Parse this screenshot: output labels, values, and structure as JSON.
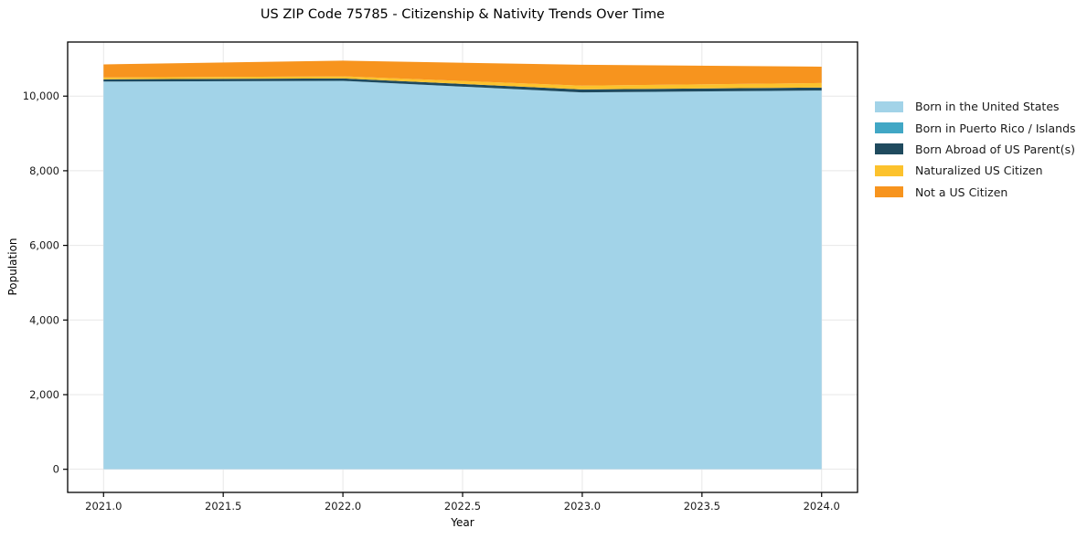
{
  "chart_data": {
    "type": "area",
    "stacked": true,
    "title": "US ZIP Code 75785 - Citizenship & Nativity Trends Over Time",
    "xlabel": "Year",
    "ylabel": "Population",
    "x": [
      2021,
      2022,
      2023,
      2024
    ],
    "series": [
      {
        "name": "Born in the United States",
        "color": "#a2d3e8",
        "values": [
          10390,
          10410,
          10100,
          10150
        ]
      },
      {
        "name": "Born in Puerto Rico / Islands",
        "color": "#41a7c5",
        "values": [
          0,
          0,
          0,
          0
        ]
      },
      {
        "name": "Born Abroad of US Parent(s)",
        "color": "#1f4a5e",
        "values": [
          60,
          65,
          80,
          80
        ]
      },
      {
        "name": "Naturalized US Citizen",
        "color": "#fcc22d",
        "values": [
          50,
          55,
          100,
          120
        ]
      },
      {
        "name": "Not a US Citizen",
        "color": "#f7941e",
        "values": [
          350,
          420,
          560,
          440
        ]
      }
    ],
    "x_ticks": [
      {
        "value": 2021.0,
        "label": "2021.0"
      },
      {
        "value": 2021.5,
        "label": "2021.5"
      },
      {
        "value": 2022.0,
        "label": "2022.0"
      },
      {
        "value": 2022.5,
        "label": "2022.5"
      },
      {
        "value": 2023.0,
        "label": "2023.0"
      },
      {
        "value": 2023.5,
        "label": "2023.5"
      },
      {
        "value": 2024.0,
        "label": "2024.0"
      }
    ],
    "y_ticks": [
      {
        "value": 0,
        "label": "0"
      },
      {
        "value": 2000,
        "label": "2,000"
      },
      {
        "value": 4000,
        "label": "4,000"
      },
      {
        "value": 6000,
        "label": "6,000"
      },
      {
        "value": 8000,
        "label": "8,000"
      },
      {
        "value": 10000,
        "label": "10,000"
      }
    ],
    "xlim": [
      2020.85,
      2024.15
    ],
    "ylim": [
      -620,
      11450
    ],
    "grid": true,
    "legend_position": "right",
    "grid_color": "#e7e7e7",
    "spine_color": "#000000",
    "tick_color": "#000000",
    "text_color": "#1a1a1a",
    "background": "#ffffff"
  }
}
